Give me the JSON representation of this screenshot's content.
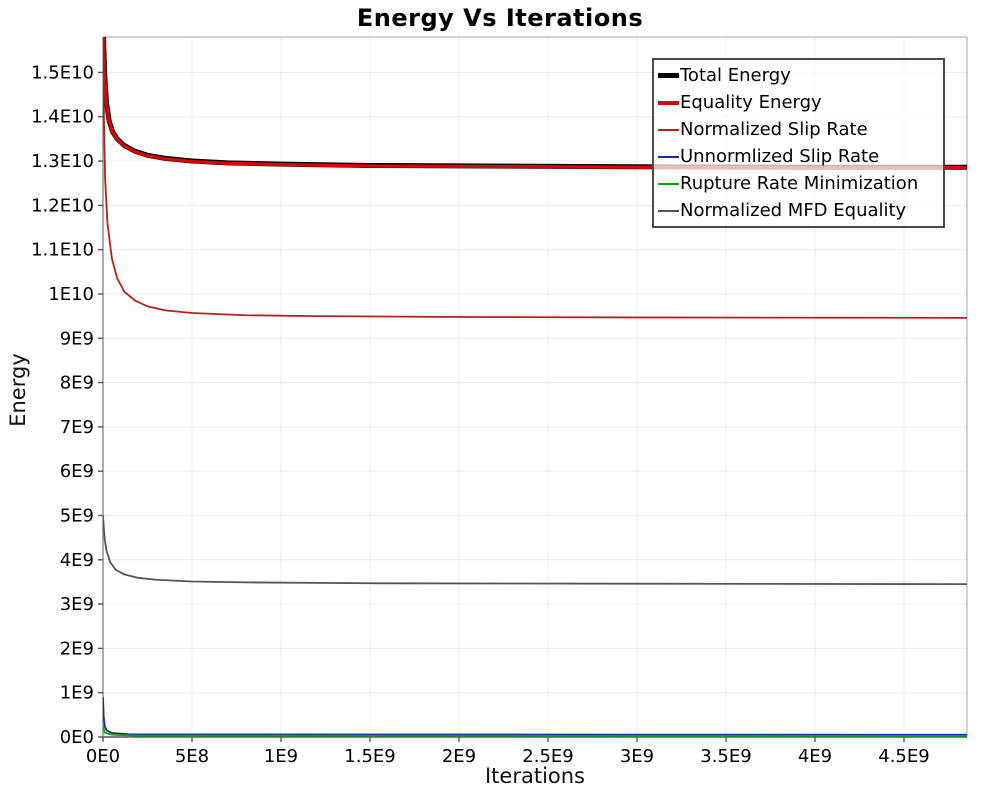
{
  "title": "Energy Vs Iterations",
  "axes": {
    "x": {
      "label": "Iterations",
      "ticks": [
        {
          "label": "0E0",
          "value": 0
        },
        {
          "label": "5E8",
          "value": 500000000.0
        },
        {
          "label": "1E9",
          "value": 1000000000.0
        },
        {
          "label": "1.5E9",
          "value": 1500000000.0
        },
        {
          "label": "2E9",
          "value": 2000000000.0
        },
        {
          "label": "2.5E9",
          "value": 2500000000.0
        },
        {
          "label": "3E9",
          "value": 3000000000.0
        },
        {
          "label": "3.5E9",
          "value": 3500000000.0
        },
        {
          "label": "4E9",
          "value": 4000000000.0
        },
        {
          "label": "4.5E9",
          "value": 4500000000.0
        }
      ]
    },
    "y": {
      "label": "Energy",
      "ticks": [
        {
          "label": "0E0",
          "value": 0
        },
        {
          "label": "1E9",
          "value": 1000000000.0
        },
        {
          "label": "2E9",
          "value": 2000000000.0
        },
        {
          "label": "3E9",
          "value": 3000000000.0
        },
        {
          "label": "4E9",
          "value": 4000000000.0
        },
        {
          "label": "5E9",
          "value": 5000000000.0
        },
        {
          "label": "6E9",
          "value": 6000000000.0
        },
        {
          "label": "7E9",
          "value": 7000000000.0
        },
        {
          "label": "8E9",
          "value": 8000000000.0
        },
        {
          "label": "9E9",
          "value": 9000000000.0
        },
        {
          "label": "1E10",
          "value": 10000000000.0
        },
        {
          "label": "1.1E10",
          "value": 11000000000.0
        },
        {
          "label": "1.2E10",
          "value": 12000000000.0
        },
        {
          "label": "1.3E10",
          "value": 13000000000.0
        },
        {
          "label": "1.4E10",
          "value": 14000000000.0
        },
        {
          "label": "1.5E10",
          "value": 15000000000.0
        }
      ]
    }
  },
  "colors": {
    "gridline": "#ececec",
    "plot_border": "#b3b3b3",
    "left_axis": "#888888",
    "bottom_axis": "#555555",
    "tick": "#555555"
  },
  "chart_data": {
    "type": "line",
    "title": "Energy Vs Iterations",
    "xlabel": "Iterations",
    "ylabel": "Energy",
    "xlim": [
      0,
      4854000000.0
    ],
    "ylim": [
      0,
      15800000000.0
    ],
    "grid": true,
    "legend_position": "top-right",
    "series": [
      {
        "name": "Total Energy",
        "color": "#000000",
        "width": 5,
        "legend_thickness": 5,
        "points": [
          [
            0,
            16500000000.0
          ],
          [
            5000000.0,
            15500000000.0
          ],
          [
            10000000.0,
            14900000000.0
          ],
          [
            20000000.0,
            14300000000.0
          ],
          [
            35000000.0,
            13900000000.0
          ],
          [
            55000000.0,
            13650000000.0
          ],
          [
            80000000.0,
            13500000000.0
          ],
          [
            120000000.0,
            13350000000.0
          ],
          [
            180000000.0,
            13220000000.0
          ],
          [
            250000000.0,
            13130000000.0
          ],
          [
            350000000.0,
            13060000000.0
          ],
          [
            500000000.0,
            13000000000.0
          ],
          [
            700000000.0,
            12960000000.0
          ],
          [
            1000000000.0,
            12930000000.0
          ],
          [
            1500000000.0,
            12900000000.0
          ],
          [
            2000000000.0,
            12890000000.0
          ],
          [
            3000000000.0,
            12870000000.0
          ],
          [
            4000000000.0,
            12860000000.0
          ],
          [
            4854000000.0,
            12860000000.0
          ]
        ]
      },
      {
        "name": "Equality Energy",
        "color": "#dd0000",
        "width": 3.2,
        "legend_thickness": 4,
        "points": [
          [
            0,
            16490000000.0
          ],
          [
            5000000.0,
            15490000000.0
          ],
          [
            10000000.0,
            14890000000.0
          ],
          [
            20000000.0,
            14290000000.0
          ],
          [
            35000000.0,
            13890000000.0
          ],
          [
            55000000.0,
            13640000000.0
          ],
          [
            80000000.0,
            13490000000.0
          ],
          [
            120000000.0,
            13340000000.0
          ],
          [
            180000000.0,
            13210000000.0
          ],
          [
            250000000.0,
            13120000000.0
          ],
          [
            350000000.0,
            13050000000.0
          ],
          [
            500000000.0,
            12990000000.0
          ],
          [
            700000000.0,
            12950000000.0
          ],
          [
            1000000000.0,
            12920000000.0
          ],
          [
            1500000000.0,
            12890000000.0
          ],
          [
            2000000000.0,
            12880000000.0
          ],
          [
            3000000000.0,
            12860000000.0
          ],
          [
            4000000000.0,
            12850000000.0
          ],
          [
            4854000000.0,
            12850000000.0
          ]
        ]
      },
      {
        "name": "Normalized Slip Rate",
        "color": "#b22222",
        "width": 1.8,
        "legend_thickness": 2,
        "points": [
          [
            0,
            16000000000.0
          ],
          [
            5000000.0,
            14000000000.0
          ],
          [
            12000000.0,
            12600000000.0
          ],
          [
            25000000.0,
            11600000000.0
          ],
          [
            50000000.0,
            10800000000.0
          ],
          [
            80000000.0,
            10350000000.0
          ],
          [
            120000000.0,
            10050000000.0
          ],
          [
            180000000.0,
            9850000000.0
          ],
          [
            250000000.0,
            9720000000.0
          ],
          [
            350000000.0,
            9630000000.0
          ],
          [
            500000000.0,
            9570000000.0
          ],
          [
            800000000.0,
            9520000000.0
          ],
          [
            1200000000.0,
            9500000000.0
          ],
          [
            2000000000.0,
            9480000000.0
          ],
          [
            3000000000.0,
            9470000000.0
          ],
          [
            4854000000.0,
            9460000000.0
          ]
        ]
      },
      {
        "name": "Unnormlized Slip Rate",
        "color": "#2222aa",
        "width": 1.8,
        "legend_thickness": 2,
        "points": [
          [
            0,
            900000000.0
          ],
          [
            4000000.0,
            450000000.0
          ],
          [
            10000000.0,
            250000000.0
          ],
          [
            20000000.0,
            150000000.0
          ],
          [
            50000000.0,
            90000000.0
          ],
          [
            150000000.0,
            60000000.0
          ],
          [
            4854000000.0,
            50000000.0
          ]
        ]
      },
      {
        "name": "Rupture Rate Minimization",
        "color": "#00aa00",
        "width": 1.8,
        "legend_thickness": 2,
        "points": [
          [
            0,
            250000000.0
          ],
          [
            10000000.0,
            100000000.0
          ],
          [
            50000000.0,
            50000000.0
          ],
          [
            200000000.0,
            30000000.0
          ],
          [
            4854000000.0,
            25000000.0
          ]
        ]
      },
      {
        "name": "Normalized MFD Equality",
        "color": "#555555",
        "width": 1.8,
        "legend_thickness": 2,
        "points": [
          [
            0,
            5000000000.0
          ],
          [
            4000000.0,
            4750000000.0
          ],
          [
            10000000.0,
            4450000000.0
          ],
          [
            20000000.0,
            4200000000.0
          ],
          [
            40000000.0,
            3950000000.0
          ],
          [
            70000000.0,
            3780000000.0
          ],
          [
            120000000.0,
            3670000000.0
          ],
          [
            200000000.0,
            3590000000.0
          ],
          [
            300000000.0,
            3550000000.0
          ],
          [
            500000000.0,
            3510000000.0
          ],
          [
            800000000.0,
            3490000000.0
          ],
          [
            1500000000.0,
            3470000000.0
          ],
          [
            3000000000.0,
            3460000000.0
          ],
          [
            4854000000.0,
            3450000000.0
          ]
        ]
      }
    ]
  }
}
